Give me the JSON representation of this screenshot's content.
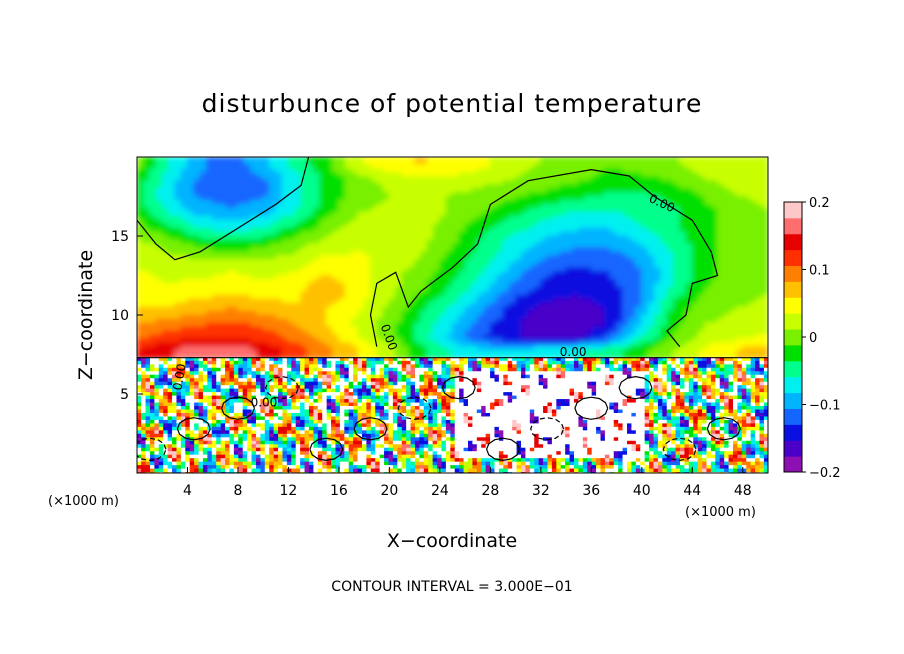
{
  "chart_data": {
    "type": "heatmap",
    "title": "disturbunce of potential temperature",
    "xlabel": "X−coordinate",
    "ylabel": "Z−coordinate",
    "x_unit": "(×1000 m)",
    "z_unit": "(×1000 m)",
    "xlim": [
      0,
      50
    ],
    "zlim": [
      0,
      20
    ],
    "x_ticks": [
      4,
      8,
      12,
      16,
      20,
      24,
      28,
      32,
      36,
      40,
      44,
      48
    ],
    "z_ticks": [
      5,
      10,
      15
    ],
    "colorbar": {
      "range": [
        -0.2,
        0.2
      ],
      "tick_labels": [
        "0.2",
        "0.1",
        "0",
        "−0.1",
        "−0.2"
      ],
      "tick_values": [
        0.2,
        0.1,
        0,
        -0.1,
        -0.2
      ],
      "colors": [
        "#8e10b2",
        "#4a00c8",
        "#0a10e0",
        "#1466ff",
        "#00b4ff",
        "#00f0f0",
        "#00ff8c",
        "#00e000",
        "#78f000",
        "#c8ff00",
        "#ffff00",
        "#ffc000",
        "#ff8000",
        "#ff3000",
        "#e60000",
        "#ff6e6e",
        "#ffc8c8"
      ]
    },
    "contour_labels": [
      "0.00",
      "0.00",
      "0.00",
      "0.00",
      "0.00"
    ],
    "contour_interval_text": "CONTOUR INTERVAL = 3.000E−01",
    "field": {
      "x": [
        0,
        2.5,
        5,
        7.5,
        10,
        12.5,
        15,
        17.5,
        20,
        22.5,
        25,
        27.5,
        30,
        32.5,
        35,
        37.5,
        40,
        42.5,
        45,
        47.5,
        50
      ],
      "z": [
        19.5,
        18.5,
        17.5,
        16.5,
        15.5,
        14.5,
        13.5,
        12.5,
        11.5,
        10.5,
        9.5,
        8.5,
        7.8
      ],
      "values": [
        [
          0.0,
          -0.06,
          -0.1,
          -0.12,
          -0.09,
          -0.05,
          -0.02,
          0.03,
          0.05,
          0.06,
          0.05,
          0.04,
          0.02,
          0.01,
          0.0,
          -0.01,
          0.0,
          0.01,
          0.02,
          0.03,
          0.03
        ],
        [
          -0.02,
          -0.07,
          -0.11,
          -0.13,
          -0.11,
          -0.07,
          -0.03,
          0.0,
          0.02,
          0.03,
          0.03,
          0.02,
          0.01,
          0.0,
          -0.01,
          -0.02,
          -0.02,
          -0.01,
          0.01,
          0.02,
          0.03
        ],
        [
          -0.03,
          -0.08,
          -0.11,
          -0.12,
          -0.11,
          -0.07,
          -0.03,
          0.0,
          0.01,
          0.02,
          0.01,
          0.0,
          -0.01,
          -0.02,
          -0.03,
          -0.04,
          -0.04,
          -0.03,
          -0.01,
          0.01,
          0.02
        ],
        [
          -0.02,
          -0.06,
          -0.09,
          -0.1,
          -0.09,
          -0.06,
          -0.02,
          0.01,
          0.02,
          0.02,
          0.01,
          -0.01,
          -0.03,
          -0.05,
          -0.06,
          -0.06,
          -0.05,
          -0.04,
          -0.02,
          0.0,
          0.01
        ],
        [
          0.0,
          -0.03,
          -0.06,
          -0.07,
          -0.06,
          -0.03,
          0.0,
          0.02,
          0.03,
          0.02,
          0.0,
          -0.03,
          -0.05,
          -0.07,
          -0.08,
          -0.08,
          -0.06,
          -0.04,
          -0.02,
          0.0,
          0.01
        ],
        [
          0.02,
          0.0,
          -0.02,
          -0.03,
          -0.02,
          0.0,
          0.02,
          0.03,
          0.03,
          0.02,
          -0.01,
          -0.04,
          -0.07,
          -0.09,
          -0.1,
          -0.1,
          -0.08,
          -0.05,
          -0.02,
          0.0,
          0.01
        ],
        [
          0.03,
          0.02,
          0.01,
          0.01,
          0.01,
          0.02,
          0.04,
          0.04,
          0.03,
          0.01,
          -0.02,
          -0.05,
          -0.08,
          -0.11,
          -0.12,
          -0.12,
          -0.1,
          -0.06,
          -0.02,
          0.0,
          0.01
        ],
        [
          0.04,
          0.03,
          0.03,
          0.04,
          0.03,
          0.04,
          0.06,
          0.05,
          0.02,
          0.0,
          -0.03,
          -0.06,
          -0.1,
          -0.13,
          -0.14,
          -0.13,
          -0.11,
          -0.06,
          -0.02,
          0.0,
          0.01
        ],
        [
          0.05,
          0.04,
          0.05,
          0.05,
          0.05,
          0.05,
          0.08,
          0.05,
          0.02,
          -0.01,
          -0.04,
          -0.08,
          -0.12,
          -0.14,
          -0.15,
          -0.14,
          -0.11,
          -0.05,
          -0.01,
          0.0,
          0.01
        ],
        [
          0.06,
          0.06,
          0.07,
          0.08,
          0.07,
          0.06,
          0.06,
          0.04,
          0.01,
          -0.03,
          -0.06,
          -0.1,
          -0.14,
          -0.16,
          -0.16,
          -0.15,
          -0.1,
          -0.03,
          0.0,
          0.01,
          0.02
        ],
        [
          0.08,
          0.09,
          0.1,
          0.11,
          0.1,
          0.08,
          0.06,
          0.03,
          0.0,
          -0.04,
          -0.08,
          -0.12,
          -0.15,
          -0.17,
          -0.17,
          -0.15,
          -0.08,
          -0.02,
          0.01,
          0.02,
          0.03
        ],
        [
          0.1,
          0.12,
          0.13,
          0.13,
          0.12,
          0.1,
          0.07,
          0.04,
          0.0,
          -0.05,
          -0.09,
          -0.13,
          -0.15,
          -0.16,
          -0.16,
          -0.12,
          -0.06,
          -0.01,
          0.02,
          0.03,
          0.04
        ],
        [
          0.13,
          0.15,
          0.17,
          0.17,
          0.15,
          0.12,
          0.09,
          0.06,
          0.02,
          -0.03,
          -0.06,
          -0.08,
          -0.08,
          -0.07,
          -0.06,
          -0.05,
          -0.02,
          0.01,
          0.04,
          0.06,
          0.07
        ]
      ]
    }
  }
}
